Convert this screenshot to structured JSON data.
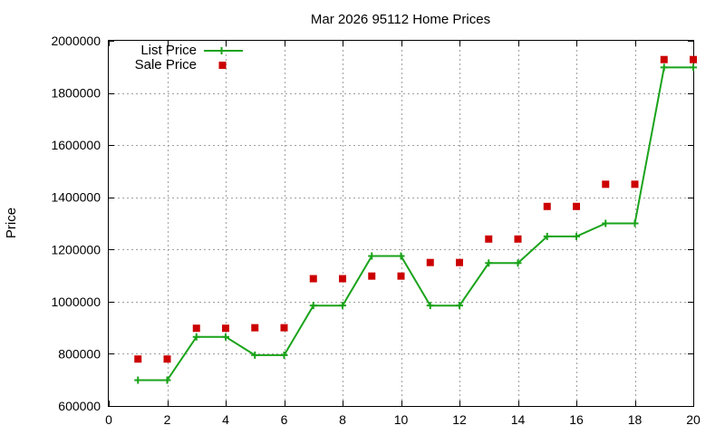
{
  "chart_data": {
    "type": "line",
    "title": "Mar 2026 95112 Home Prices",
    "xlabel": "",
    "ylabel": "Price",
    "xlim": [
      0,
      20
    ],
    "ylim": [
      600000,
      2000000
    ],
    "x_ticks": [
      0,
      2,
      4,
      6,
      8,
      10,
      12,
      14,
      16,
      18,
      20
    ],
    "y_ticks": [
      600000,
      800000,
      1000000,
      1200000,
      1400000,
      1600000,
      1800000,
      2000000
    ],
    "x_tick_labels": [
      "0",
      "2",
      "4",
      "6",
      "8",
      "10",
      "12",
      "14",
      "16",
      "18",
      "20"
    ],
    "y_tick_labels": [
      "600000",
      "800000",
      "1000000",
      "1200000",
      "1400000",
      "1600000",
      "1800000",
      "2000000"
    ],
    "grid": true,
    "legend_position": "top-left",
    "series": [
      {
        "name": "List Price",
        "style": "line-with-plus-markers",
        "color": "#1aa31a",
        "x": [
          1,
          2,
          3,
          4,
          5,
          6,
          7,
          8,
          9,
          10,
          11,
          12,
          13,
          14,
          15,
          16,
          17,
          18,
          19,
          20
        ],
        "y": [
          699000,
          699000,
          865000,
          865000,
          795000,
          795000,
          985000,
          985000,
          1175000,
          1175000,
          985000,
          985000,
          1148000,
          1148000,
          1250000,
          1250000,
          1300000,
          1300000,
          1898000,
          1898000
        ]
      },
      {
        "name": "Sale Price",
        "style": "square-points",
        "color": "#cc0000",
        "x": [
          1,
          2,
          3,
          4,
          5,
          6,
          7,
          8,
          9,
          10,
          11,
          12,
          13,
          14,
          15,
          16,
          17,
          18,
          19,
          20
        ],
        "y": [
          780000,
          780000,
          898000,
          898000,
          900000,
          900000,
          1088000,
          1088000,
          1098000,
          1098000,
          1150000,
          1150000,
          1240000,
          1240000,
          1365000,
          1365000,
          1450000,
          1450000,
          1928000,
          1928000
        ]
      }
    ]
  }
}
